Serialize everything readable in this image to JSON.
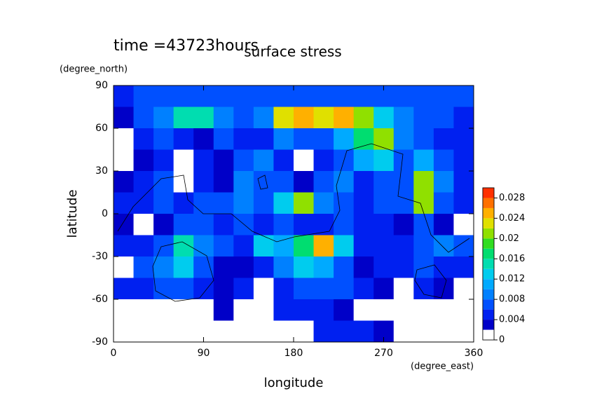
{
  "chart_data": {
    "type": "contour",
    "title": "surface stress",
    "annotation": "time =43723hours",
    "x_label": "longitude",
    "x_units": "(degree_east)",
    "y_label": "latitude",
    "y_units": "(degree_north)",
    "xlim": [
      0,
      360
    ],
    "xticks": [
      0,
      90,
      180,
      270,
      360
    ],
    "ylim": [
      -90,
      90
    ],
    "yticks": [
      -90,
      -60,
      -30,
      0,
      30,
      60,
      90
    ],
    "x": [
      10,
      30,
      50,
      70,
      90,
      110,
      130,
      150,
      170,
      190,
      210,
      230,
      250,
      270,
      290,
      310,
      330,
      350
    ],
    "y": [
      82.5,
      67.5,
      52.5,
      37.5,
      22.5,
      7.5,
      -7.5,
      -22.5,
      -37.5,
      -52.5,
      -67.5,
      -82.5
    ],
    "z": [
      [
        0.005,
        0.006,
        0.006,
        0.006,
        0.007,
        0.006,
        0.006,
        0.006,
        0.006,
        0.007,
        0.007,
        0.006,
        0.006,
        0.006,
        0.006,
        0.006,
        0.006,
        0.006
      ],
      [
        0.003,
        0.006,
        0.009,
        0.014,
        0.015,
        0.008,
        0.006,
        0.008,
        0.022,
        0.024,
        0.022,
        0.024,
        0.02,
        0.012,
        0.008,
        0.006,
        0.006,
        0.005
      ],
      [
        0.001,
        0.004,
        0.006,
        0.005,
        0.003,
        0.006,
        0.005,
        0.004,
        0.008,
        0.006,
        0.006,
        0.01,
        0.016,
        0.02,
        0.008,
        0.006,
        0.005,
        0.004
      ],
      [
        0.001,
        0.003,
        0.004,
        0.001,
        0.004,
        0.003,
        0.006,
        0.008,
        0.005,
        0.001,
        0.004,
        0.006,
        0.01,
        0.012,
        0.006,
        0.01,
        0.006,
        0.004
      ],
      [
        0.003,
        0.004,
        0.006,
        0.001,
        0.005,
        0.002,
        0.008,
        0.006,
        0.007,
        0.003,
        0.006,
        0.008,
        0.005,
        0.006,
        0.006,
        0.02,
        0.008,
        0.005
      ],
      [
        0.005,
        0.004,
        0.006,
        0.004,
        0.006,
        0.006,
        0.008,
        0.006,
        0.012,
        0.02,
        0.008,
        0.006,
        0.004,
        0.006,
        0.006,
        0.02,
        0.006,
        0.004
      ],
      [
        0.002,
        0.001,
        0.003,
        0.006,
        0.006,
        0.005,
        0.006,
        0.004,
        0.006,
        0.005,
        0.004,
        0.006,
        0.005,
        0.004,
        0.003,
        0.006,
        0.003,
        0.001
      ],
      [
        0.004,
        0.004,
        0.007,
        0.014,
        0.008,
        0.006,
        0.005,
        0.012,
        0.01,
        0.016,
        0.024,
        0.012,
        0.005,
        0.004,
        0.004,
        0.006,
        0.008,
        0.006
      ],
      [
        0.001,
        0.006,
        0.008,
        0.012,
        0.006,
        0.003,
        0.002,
        0.005,
        0.008,
        0.012,
        0.01,
        0.006,
        0.003,
        0.005,
        0.004,
        0.006,
        0.005,
        0.004
      ],
      [
        0.004,
        0.005,
        0.006,
        0.006,
        0.004,
        0.002,
        0.004,
        0.001,
        0.005,
        0.006,
        0.006,
        0.006,
        0.005,
        0.003,
        0.001,
        0.004,
        0.003,
        0.001
      ],
      [
        0.001,
        0.001,
        0.001,
        0.001,
        0.001,
        0.003,
        0.001,
        0.001,
        0.004,
        0.005,
        0.005,
        0.003,
        0.001,
        0.001,
        0.001,
        0.001,
        0.001,
        0.001
      ],
      [
        0.001,
        0.001,
        0.001,
        0.001,
        0.001,
        0.001,
        0.001,
        0.001,
        0.001,
        0.001,
        0.004,
        0.005,
        0.004,
        0.003,
        0.001,
        0.001,
        0.001,
        0.001
      ]
    ],
    "levels": [
      0,
      0.002,
      0.004,
      0.006,
      0.008,
      0.01,
      0.012,
      0.014,
      0.016,
      0.018,
      0.02,
      0.022,
      0.024,
      0.026,
      0.028,
      0.03
    ],
    "colors": [
      "#ffffff",
      "#0000c8",
      "#0020f0",
      "#0050ff",
      "#0080ff",
      "#00aaff",
      "#00ccee",
      "#00ddb0",
      "#00dd70",
      "#30dd20",
      "#90e000",
      "#e0e000",
      "#ffb000",
      "#ff7000",
      "#ff3000"
    ],
    "colorbar_ticks": [
      0,
      0.004,
      0.008,
      0.012,
      0.016,
      0.02,
      0.024,
      0.028
    ]
  }
}
